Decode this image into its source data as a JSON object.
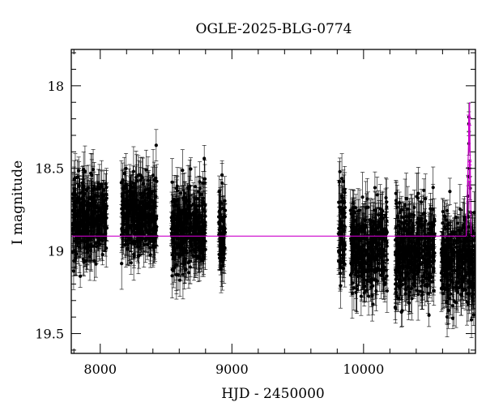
{
  "chart_data": {
    "type": "scatter",
    "title": "OGLE-2025-BLG-0774",
    "xlabel": "HJD - 2450000",
    "ylabel": "I magnitude",
    "xlim": [
      7780,
      10850
    ],
    "ylim": [
      19.62,
      17.78
    ],
    "y_inverted": true,
    "x_ticks": [
      8000,
      9000,
      10000
    ],
    "x_tick_labels": [
      "8000",
      "9000",
      "10000"
    ],
    "y_ticks": [
      18,
      18.5,
      19,
      19.5
    ],
    "y_tick_labels": [
      "18",
      "18.5",
      "19",
      "19.5"
    ],
    "baseline_mag": 18.91,
    "colors": {
      "data": "#000000",
      "model": "#cc00cc"
    },
    "seasons": [
      {
        "start": 7790,
        "end": 8050,
        "mean_mag": 18.8,
        "spread": 0.16
      },
      {
        "start": 8160,
        "end": 8430,
        "mean_mag": 18.79,
        "spread": 0.15
      },
      {
        "start": 8540,
        "end": 8800,
        "mean_mag": 18.86,
        "spread": 0.17
      },
      {
        "start": 8900,
        "end": 8950,
        "mean_mag": 18.88,
        "spread": 0.14
      },
      {
        "start": 9810,
        "end": 9860,
        "mean_mag": 18.9,
        "spread": 0.2
      },
      {
        "start": 9900,
        "end": 10180,
        "mean_mag": 18.97,
        "spread": 0.18
      },
      {
        "start": 10240,
        "end": 10540,
        "mean_mag": 19.0,
        "spread": 0.18
      },
      {
        "start": 10590,
        "end": 10850,
        "mean_mag": 19.05,
        "spread": 0.18
      }
    ],
    "bright_points": [
      {
        "x": 8425,
        "y": 18.36
      },
      {
        "x": 8790,
        "y": 18.44
      },
      {
        "x": 8925,
        "y": 18.54
      },
      {
        "x": 9820,
        "y": 18.52
      },
      {
        "x": 10800,
        "y": 18.19
      },
      {
        "x": 10800,
        "y": 18.23
      },
      {
        "x": 10800,
        "y": 18.35
      },
      {
        "x": 10805,
        "y": 18.5
      },
      {
        "x": 10795,
        "y": 18.55
      },
      {
        "x": 10810,
        "y": 18.62
      }
    ],
    "event": {
      "peak_x": 10805,
      "peak_mag": 18.1
    }
  }
}
